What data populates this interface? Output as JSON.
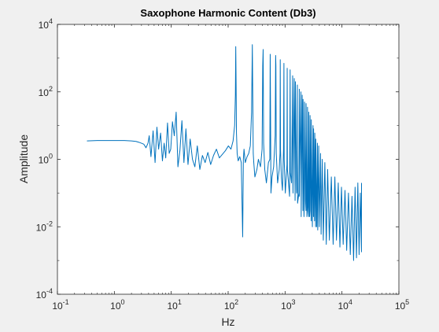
{
  "chart_data": {
    "type": "line",
    "title": "Saxophone Harmonic Content (Db3)",
    "xlabel": "Hz",
    "ylabel": "Amplitude",
    "xscale": "log",
    "yscale": "log",
    "xlim": [
      0.1,
      100000
    ],
    "ylim": [
      0.0001,
      10000
    ],
    "grid": false,
    "x_ticks": [
      {
        "value": 0.1,
        "base": "10",
        "exp": "-1"
      },
      {
        "value": 1,
        "base": "10",
        "exp": "0"
      },
      {
        "value": 10,
        "base": "10",
        "exp": "1"
      },
      {
        "value": 100,
        "base": "10",
        "exp": "2"
      },
      {
        "value": 1000,
        "base": "10",
        "exp": "3"
      },
      {
        "value": 10000,
        "base": "10",
        "exp": "4"
      },
      {
        "value": 100000,
        "base": "10",
        "exp": "5"
      }
    ],
    "y_ticks": [
      {
        "value": 0.0001,
        "base": "10",
        "exp": "-4"
      },
      {
        "value": 0.01,
        "base": "10",
        "exp": "-2"
      },
      {
        "value": 1,
        "base": "10",
        "exp": "0"
      },
      {
        "value": 100,
        "base": "10",
        "exp": "2"
      },
      {
        "value": 10000,
        "base": "10",
        "exp": "4"
      }
    ],
    "series": [
      {
        "color": "#0072bd",
        "x": [
          0.33,
          0.5,
          1.0,
          1.5,
          2.0,
          2.4,
          2.7,
          3.0,
          3.3,
          3.6,
          3.9,
          4.1,
          4.4,
          4.8,
          5.2,
          5.6,
          6.0,
          6.5,
          7.0,
          7.5,
          8.0,
          8.6,
          9.2,
          9.8,
          10.5,
          11.3,
          12.2,
          13.1,
          14.2,
          15.4,
          16.7,
          18.1,
          19.7,
          21.5,
          23.6,
          26.0,
          28.7,
          31.8,
          35.3,
          39.4,
          44.0,
          49.3,
          55.3,
          62.2,
          70.1,
          79.1,
          89.4,
          101.0,
          112.0,
          122.0,
          130.0,
          134.0,
          136.0,
          138.0,
          140.0,
          144.0,
          150.0,
          160.0,
          170.0,
          180.0,
          185.0,
          190.0,
          200.0,
          215.0,
          230.0,
          245.0,
          258.0,
          266.0,
          272.0,
          276.0,
          282.0,
          295.0,
          320.0,
          340.0,
          370.0,
          395.0,
          405.0,
          412.0,
          420.0,
          440.0,
          470.0,
          510.0,
          540.0,
          548.0,
          555.0,
          565.0,
          590.0,
          630.0,
          670.0,
          683.0,
          690.0,
          700.0,
          740.0,
          790.0,
          815.0,
          823.0,
          832.0,
          860.0,
          900.0,
          940.0,
          955.0,
          965.0,
          1010.0,
          1080.0,
          1090.0,
          1100.0,
          1150.0,
          1200.0,
          1228.0,
          1240.0,
          1300.0,
          1360.0,
          1370.0,
          1380.0,
          1450.0,
          1500.0,
          1510.0,
          1520.0,
          1600.0,
          1640.0,
          1645.0,
          1660.0,
          1750.0,
          1780.0,
          1790.0,
          1800.0,
          1900.0,
          1920.0,
          1930.0,
          2000.0,
          2050.0,
          2060.0,
          2070.0,
          2150.0,
          2190.0,
          2200.0,
          2300.0,
          2330.0,
          2340.0,
          2420.0,
          2470.0,
          2480.0,
          2550.0,
          2600.0,
          2610.0,
          2700.0,
          2740.0,
          2750.0,
          2850.0,
          2880.0,
          2890.0,
          3000.0,
          3020.0,
          3100.0,
          3160.0,
          3170.0,
          3300.0,
          3330.0,
          3440.0,
          3460.0,
          3600.0,
          3700.0,
          3750.0,
          3900.0,
          4000.0,
          4200.0,
          4300.0,
          4500.0,
          4700.0,
          5000.0,
          5300.0,
          5600.0,
          6000.0,
          6500.0,
          7000.0,
          7500.0,
          8000.0,
          8600.0,
          9200.0,
          9800.0,
          10500.0,
          11300.0,
          12100.0,
          13000.0,
          14000.0,
          15000.0,
          16000.0,
          17000.0,
          18000.0,
          19000.0,
          20000.0,
          21000.0,
          22000.0,
          22050.0
        ],
        "y": [
          3.5,
          3.6,
          3.6,
          3.6,
          3.5,
          3.4,
          3.2,
          3.0,
          2.8,
          2.2,
          3.0,
          5.0,
          1.2,
          7.0,
          0.8,
          9.0,
          2.0,
          6.0,
          0.9,
          3.0,
          1.1,
          12.0,
          1.5,
          2.0,
          13.0,
          5.0,
          25.0,
          0.6,
          1.8,
          14.0,
          0.8,
          8.0,
          0.7,
          4.0,
          1.0,
          0.6,
          2.5,
          0.5,
          1.3,
          0.8,
          1.6,
          0.7,
          1.3,
          2.0,
          1.1,
          1.4,
          1.8,
          2.5,
          2.0,
          3.5,
          10.0,
          80.0,
          2200.0,
          150.0,
          6.0,
          1.5,
          0.9,
          1.2,
          0.8,
          0.005,
          1.0,
          2.0,
          0.8,
          1.2,
          1.5,
          2.5,
          25.0,
          2500.0,
          30.0,
          1.5,
          0.8,
          0.3,
          0.5,
          1.0,
          0.6,
          2.0,
          600.0,
          1800.0,
          3.0,
          0.5,
          0.2,
          0.8,
          1.0,
          1300.0,
          40.0,
          0.1,
          0.3,
          0.6,
          5.0,
          1200.0,
          600.0,
          1.5,
          0.2,
          0.5,
          1.5,
          900.0,
          2.0,
          0.3,
          0.12,
          2.0,
          700.0,
          1.0,
          0.1,
          0.7,
          500.0,
          0.5,
          0.2,
          0.08,
          450.0,
          0.4,
          0.2,
          300.0,
          0.3,
          0.1,
          250.0,
          0.06,
          0.2,
          200.0,
          0.1,
          0.3,
          160.0,
          0.05,
          0.1,
          120.0,
          0.08,
          0.3,
          100.0,
          0.02,
          0.07,
          80.0,
          0.1,
          0.03,
          60.0,
          0.02,
          0.06,
          50.0,
          0.05,
          0.03,
          45.0,
          0.02,
          0.04,
          35.0,
          0.03,
          0.02,
          25.0,
          0.02,
          0.03,
          20.0,
          0.05,
          0.015,
          15.0,
          0.02,
          0.01,
          10.0,
          0.02,
          8.0,
          0.015,
          6.0,
          0.01,
          4.0,
          0.01,
          3.0,
          0.008,
          2.5,
          0.01,
          1.5,
          0.006,
          1.0,
          0.004,
          0.8,
          0.003,
          0.5,
          0.004,
          0.3,
          0.003,
          0.3,
          0.004,
          0.2,
          0.0025,
          0.15,
          0.003,
          0.12,
          0.002,
          0.1,
          0.0015,
          0.08,
          0.001,
          0.15,
          0.0012,
          0.2,
          0.0015,
          0.1,
          0.0018,
          0.2
        ]
      }
    ]
  }
}
